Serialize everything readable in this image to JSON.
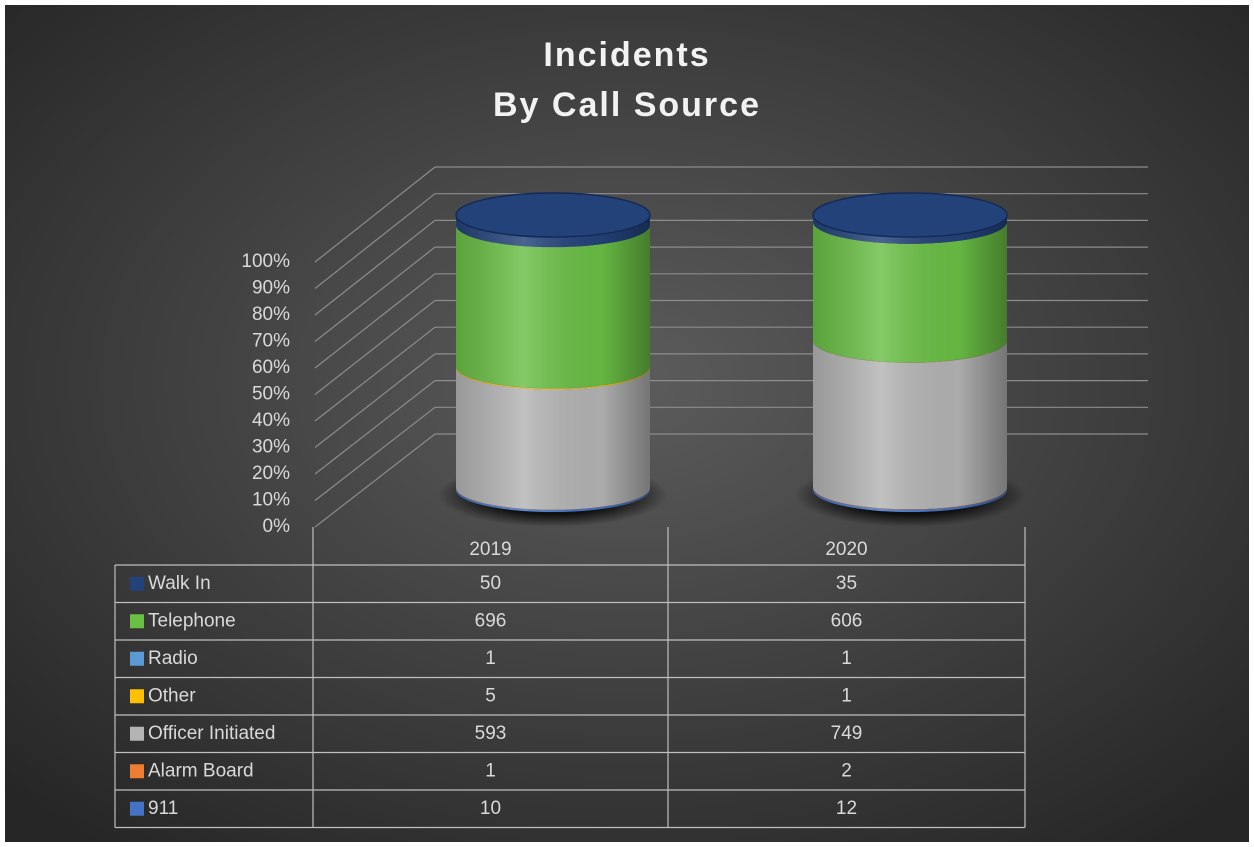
{
  "chart_data": {
    "type": "cylinder",
    "stack": "percent",
    "title": [
      "Incidents",
      "By Call Source"
    ],
    "categories": [
      "2019",
      "2020"
    ],
    "series": [
      {
        "name": "911",
        "color": "#4472c4",
        "values": [
          10,
          12
        ]
      },
      {
        "name": "Alarm Board",
        "color": "#ed7d31",
        "values": [
          1,
          2
        ]
      },
      {
        "name": "Officer Initiated",
        "color": "#b4b4b4",
        "values": [
          593,
          749
        ]
      },
      {
        "name": "Other",
        "color": "#ffc000",
        "values": [
          5,
          1
        ]
      },
      {
        "name": "Radio",
        "color": "#5b9bd5",
        "values": [
          1,
          1
        ]
      },
      {
        "name": "Telephone",
        "color": "#6abf45",
        "values": [
          696,
          606
        ]
      },
      {
        "name": "Walk In",
        "color": "#23427a",
        "values": [
          50,
          35
        ]
      }
    ],
    "ylim": [
      0,
      100
    ],
    "yticks": [
      {
        "value": 0,
        "label": "0%"
      },
      {
        "value": 10,
        "label": "10%"
      },
      {
        "value": 20,
        "label": "20%"
      },
      {
        "value": 30,
        "label": "30%"
      },
      {
        "value": 40,
        "label": "40%"
      },
      {
        "value": 50,
        "label": "50%"
      },
      {
        "value": 60,
        "label": "60%"
      },
      {
        "value": 70,
        "label": "70%"
      },
      {
        "value": 80,
        "label": "80%"
      },
      {
        "value": 90,
        "label": "90%"
      },
      {
        "value": 100,
        "label": "100%"
      }
    ],
    "grid": true,
    "data_table": true
  }
}
